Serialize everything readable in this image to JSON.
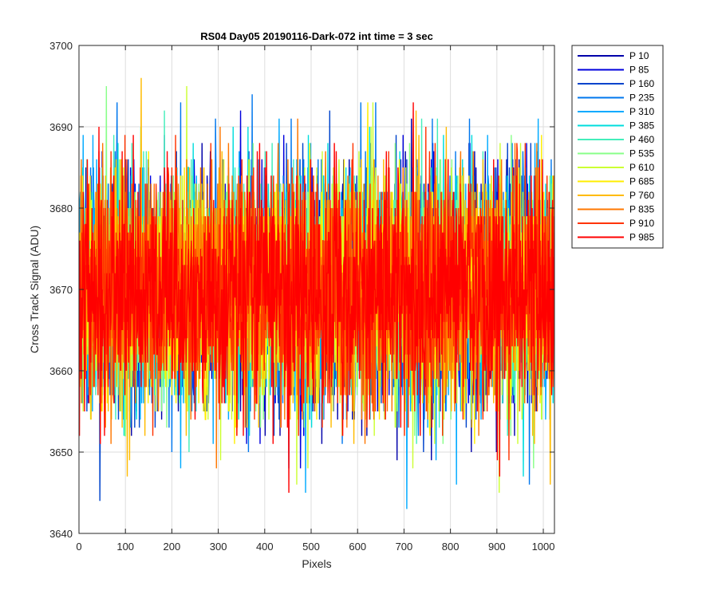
{
  "chart_data": {
    "type": "line",
    "title": "RS04 Day05 20190116-Dark-072 int time = 3 sec",
    "xlabel": "Pixels",
    "ylabel": "Cross Track Signal (ADU)",
    "xlim": [
      0,
      1024
    ],
    "ylim": [
      3640,
      3700
    ],
    "xticks": [
      0,
      100,
      200,
      300,
      400,
      500,
      600,
      700,
      800,
      900,
      1000
    ],
    "yticks": [
      3640,
      3650,
      3660,
      3670,
      3680,
      3690,
      3700
    ],
    "grid": true,
    "legend_position": "outside-top-right",
    "x": {
      "start": 1,
      "end": 1024,
      "step": 1
    },
    "noise_model": {
      "mean": 3670,
      "std": 7,
      "min": 3641,
      "max": 3700,
      "integer_valued": true
    },
    "series": [
      {
        "name": "P 10",
        "color": "#0000aa",
        "mean": 3670
      },
      {
        "name": "P 85",
        "color": "#0000dd",
        "mean": 3670
      },
      {
        "name": "P 160",
        "color": "#0044cc",
        "mean": 3670
      },
      {
        "name": "P 235",
        "color": "#0077ee",
        "mean": 3670
      },
      {
        "name": "P 310",
        "color": "#00aaff",
        "mean": 3670
      },
      {
        "name": "P 385",
        "color": "#00dddd",
        "mean": 3670
      },
      {
        "name": "P 460",
        "color": "#44eebb",
        "mean": 3670
      },
      {
        "name": "P 535",
        "color": "#88ff88",
        "mean": 3670
      },
      {
        "name": "P 610",
        "color": "#ccff33",
        "mean": 3670
      },
      {
        "name": "P 685",
        "color": "#ffee00",
        "mean": 3670
      },
      {
        "name": "P 760",
        "color": "#ffbb00",
        "mean": 3670
      },
      {
        "name": "P 835",
        "color": "#ff7700",
        "mean": 3670
      },
      {
        "name": "P 910",
        "color": "#ff3300",
        "mean": 3670
      },
      {
        "name": "P 985",
        "color": "#ff0000",
        "mean": 3670
      }
    ]
  }
}
